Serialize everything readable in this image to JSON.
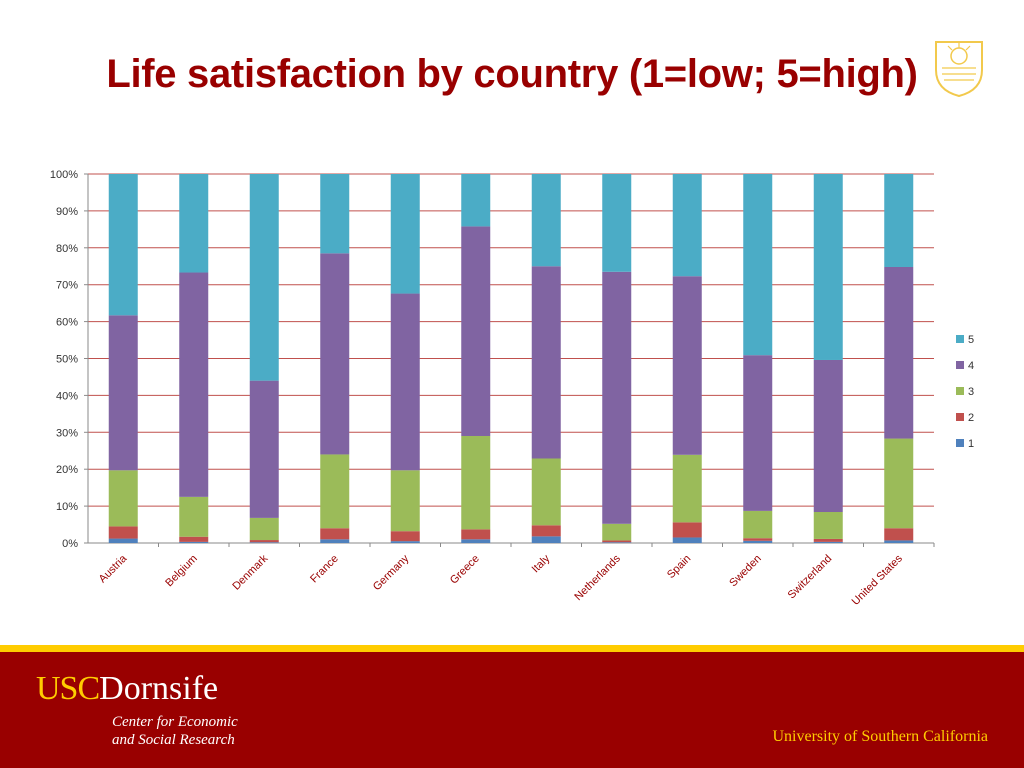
{
  "slide": {
    "title": "Life satisfaction by country (1=low; 5=high)"
  },
  "footer": {
    "brand_usc": "USC",
    "brand_dornsife": "Dornsife",
    "center_line1": "Center for Economic",
    "center_line2": "and Social Research",
    "university": "University of Southern California"
  },
  "colors": {
    "title": "#990000",
    "footer_bg": "#990000",
    "gold": "#ffcc00",
    "gridline": "#c0504d"
  },
  "chart_data": {
    "type": "bar",
    "stacked": "percent",
    "categories": [
      "Austria",
      "Belgium",
      "Denmark",
      "France",
      "Germany",
      "Greece",
      "Italy",
      "Netherlands",
      "Spain",
      "Sweden",
      "Switzerland",
      "United States"
    ],
    "series": [
      {
        "name": "1",
        "color": "#4f81bd",
        "values": [
          1.2,
          0.3,
          0.2,
          1.0,
          0.5,
          1.0,
          1.8,
          0.2,
          1.5,
          0.6,
          0.3,
          0.7
        ]
      },
      {
        "name": "2",
        "color": "#c0504d",
        "values": [
          3.3,
          1.4,
          0.6,
          3.0,
          2.7,
          2.7,
          3.0,
          0.5,
          4.1,
          0.7,
          0.8,
          3.3
        ]
      },
      {
        "name": "3",
        "color": "#9bbb59",
        "values": [
          15.2,
          10.8,
          6.0,
          20.0,
          16.5,
          25.3,
          18.1,
          4.5,
          18.3,
          7.4,
          7.3,
          24.3
        ]
      },
      {
        "name": "4",
        "color": "#8064a2",
        "values": [
          42.0,
          60.8,
          37.2,
          54.5,
          47.9,
          56.8,
          52.1,
          68.3,
          48.4,
          42.2,
          41.2,
          46.5
        ]
      },
      {
        "name": "5",
        "color": "#4bacc6",
        "values": [
          38.3,
          26.7,
          56.0,
          21.5,
          32.4,
          14.2,
          25.0,
          26.5,
          27.7,
          49.1,
          50.4,
          25.2
        ]
      }
    ],
    "y_tick_labels": [
      "0%",
      "10%",
      "20%",
      "30%",
      "40%",
      "50%",
      "60%",
      "70%",
      "80%",
      "90%",
      "100%"
    ],
    "ylim": [
      0,
      100
    ],
    "grid": true,
    "legend": "right",
    "legend_entries": [
      "5",
      "4",
      "3",
      "2",
      "1"
    ]
  }
}
